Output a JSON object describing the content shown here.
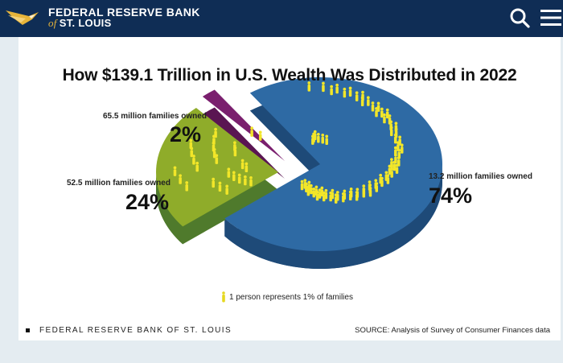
{
  "header": {
    "logo_line1": "FEDERAL RESERVE BANK",
    "logo_of": "of",
    "logo_line2": "ST. LOUIS",
    "search_icon": "search-icon",
    "menu_icon": "hamburger-menu-icon",
    "bar_color": "#0f2d55",
    "accent_color": "#e7b43a"
  },
  "chart_data": {
    "type": "pie",
    "title": "How $139.1 Trillion in U.S. Wealth Was Distributed in 2022",
    "slices": [
      {
        "label": "13.2 million families owned",
        "value": 74,
        "value_text": "74%",
        "color": "#2e6aa4",
        "side_color": "#1e4a78"
      },
      {
        "label": "52.5 million families owned",
        "value": 24,
        "value_text": "24%",
        "color": "#8fac2a",
        "side_color": "#4f7a2c"
      },
      {
        "label": "65.5 million families owned",
        "value": 2,
        "value_text": "2%",
        "color": "#7a1f6e",
        "side_color": "#5a1552"
      }
    ],
    "figure_color": "#f2e629",
    "legend": "1 person represents 1% of families",
    "footer_source": "FEDERAL RESERVE BANK OF ST. LOUIS",
    "footer_note": "SOURCE: Analysis of Survey of Consumer Finances data"
  }
}
